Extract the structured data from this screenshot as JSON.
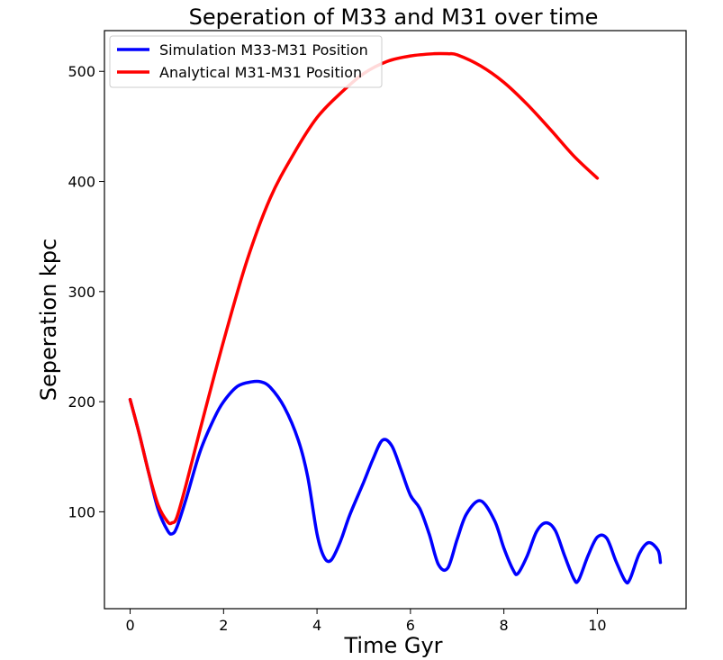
{
  "chart_data": {
    "type": "line",
    "title": "Seperation of M33 and M31 over time",
    "xlabel": "Time Gyr",
    "ylabel": "Seperation kpc",
    "xlim": [
      -0.55,
      11.9
    ],
    "ylim": [
      12,
      537
    ],
    "xticks": [
      0,
      2,
      4,
      6,
      8,
      10
    ],
    "yticks": [
      100,
      200,
      300,
      400,
      500
    ],
    "grid": false,
    "legend_position": "top-left",
    "series": [
      {
        "name": "Simulation M33-M31 Position",
        "color": "#0000ff",
        "x": [
          0.0,
          0.2,
          0.4,
          0.6,
          0.8,
          0.9,
          1.0,
          1.2,
          1.5,
          1.8,
          2.0,
          2.3,
          2.6,
          2.8,
          3.0,
          3.3,
          3.6,
          3.8,
          4.0,
          4.15,
          4.3,
          4.5,
          4.7,
          5.0,
          5.2,
          5.4,
          5.6,
          5.8,
          6.0,
          6.2,
          6.4,
          6.6,
          6.8,
          7.0,
          7.2,
          7.5,
          7.8,
          8.0,
          8.2,
          8.3,
          8.5,
          8.7,
          8.9,
          9.1,
          9.3,
          9.5,
          9.6,
          9.8,
          10.0,
          10.2,
          10.4,
          10.6,
          10.7,
          10.9,
          11.1,
          11.3,
          11.35
        ],
        "y": [
          202,
          170,
          135,
          102,
          83,
          80,
          86,
          112,
          155,
          185,
          200,
          214,
          218,
          218,
          213,
          195,
          165,
          132,
          80,
          59,
          56,
          73,
          97,
          127,
          148,
          165,
          160,
          138,
          115,
          103,
          80,
          52,
          49,
          75,
          98,
          110,
          92,
          67,
          47,
          44,
          60,
          82,
          90,
          83,
          60,
          39,
          38,
          60,
          77,
          76,
          55,
          37,
          39,
          62,
          72,
          65,
          54
        ]
      },
      {
        "name": "Analytical M31-M31 Position",
        "color": "#ff0000",
        "x": [
          0.0,
          0.2,
          0.4,
          0.6,
          0.8,
          0.9,
          1.0,
          1.2,
          1.5,
          2.0,
          2.5,
          3.0,
          3.5,
          4.0,
          4.5,
          5.0,
          5.5,
          6.0,
          6.5,
          6.8,
          7.0,
          7.5,
          8.0,
          8.5,
          9.0,
          9.5,
          10.0
        ],
        "y": [
          202,
          170,
          135,
          106,
          91,
          90,
          95,
          125,
          175,
          255,
          328,
          385,
          425,
          458,
          480,
          498,
          509,
          514,
          516,
          516,
          515,
          505,
          490,
          470,
          447,
          423,
          403
        ]
      }
    ]
  }
}
